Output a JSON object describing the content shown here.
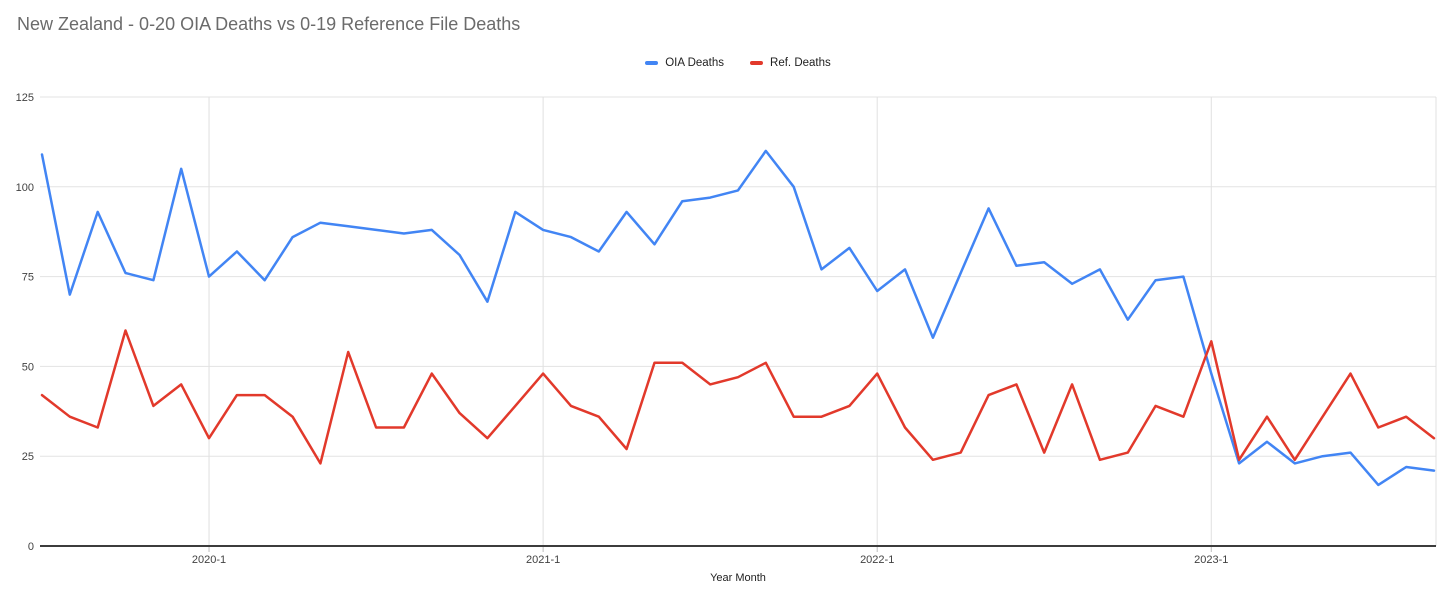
{
  "title": "New Zealand - 0-20 OIA Deaths vs 0-19 Reference File Deaths",
  "legend": [
    {
      "label": "OIA Deaths",
      "color": "#4285F4"
    },
    {
      "label": "Ref. Deaths",
      "color": "#E2392B"
    }
  ],
  "axes": {
    "x_title": "Year Month",
    "x_ticks": [
      "2020-1",
      "2021-1",
      "2022-1",
      "2023-1"
    ],
    "y_ticks": [
      0,
      25,
      50,
      75,
      100,
      125
    ]
  },
  "chart_data": {
    "type": "line",
    "title": "New Zealand - 0-20 OIA Deaths vs 0-19 Reference File Deaths",
    "xlabel": "Year Month",
    "ylabel": "",
    "ylim": [
      0,
      125
    ],
    "grid": true,
    "legend_position": "top-center",
    "x": [
      "2019-7",
      "2019-8",
      "2019-9",
      "2019-10",
      "2019-11",
      "2019-12",
      "2020-1",
      "2020-2",
      "2020-3",
      "2020-4",
      "2020-5",
      "2020-6",
      "2020-7",
      "2020-8",
      "2020-9",
      "2020-10",
      "2020-11",
      "2020-12",
      "2021-1",
      "2021-2",
      "2021-3",
      "2021-4",
      "2021-5",
      "2021-6",
      "2021-7",
      "2021-8",
      "2021-9",
      "2021-10",
      "2021-11",
      "2021-12",
      "2022-1",
      "2022-2",
      "2022-3",
      "2022-4",
      "2022-5",
      "2022-6",
      "2022-7",
      "2022-8",
      "2022-9",
      "2022-10",
      "2022-11",
      "2022-12",
      "2023-1",
      "2023-2",
      "2023-3",
      "2023-4",
      "2023-5",
      "2023-6",
      "2023-7",
      "2023-8",
      "2023-9"
    ],
    "x_tick_labels": [
      "2020-1",
      "2021-1",
      "2022-1",
      "2023-1"
    ],
    "x_tick_indices": [
      6,
      18,
      30,
      42
    ],
    "y_ticks": [
      0,
      25,
      50,
      75,
      100,
      125
    ],
    "series": [
      {
        "name": "OIA Deaths",
        "color": "#4285F4",
        "values": [
          109,
          70,
          93,
          76,
          74,
          105,
          75,
          82,
          74,
          86,
          90,
          89,
          88,
          87,
          88,
          81,
          68,
          93,
          88,
          86,
          82,
          93,
          84,
          96,
          97,
          99,
          110,
          100,
          77,
          83,
          71,
          77,
          58,
          76,
          94,
          78,
          79,
          73,
          77,
          63,
          74,
          75,
          48,
          23,
          29,
          23,
          25,
          26,
          17,
          22,
          21
        ]
      },
      {
        "name": "Ref. Deaths",
        "color": "#E2392B",
        "values": [
          42,
          36,
          33,
          60,
          39,
          45,
          30,
          42,
          42,
          36,
          23,
          54,
          33,
          33,
          48,
          37,
          30,
          39,
          48,
          39,
          36,
          27,
          51,
          51,
          45,
          47,
          51,
          36,
          36,
          39,
          48,
          33,
          24,
          26,
          42,
          45,
          26,
          45,
          24,
          26,
          39,
          36,
          57,
          24,
          36,
          24,
          36,
          48,
          33,
          36,
          30
        ]
      }
    ]
  }
}
